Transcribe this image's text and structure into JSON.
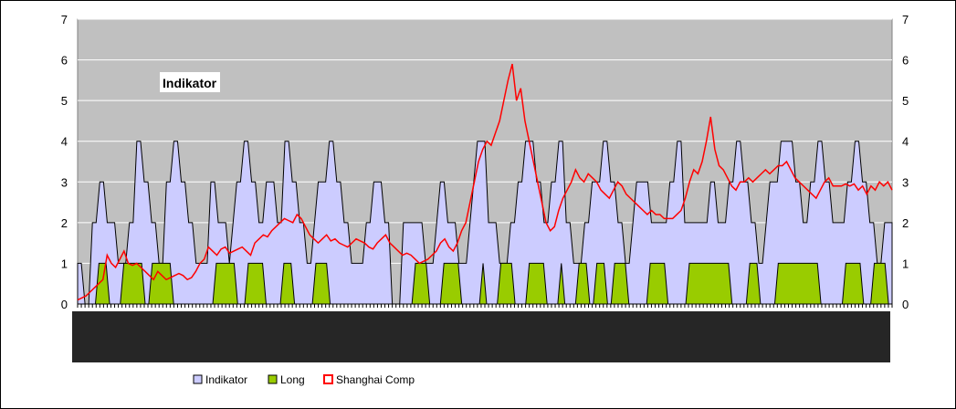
{
  "chart_data": {
    "type": "area",
    "title": "Indikator",
    "xlabel": "",
    "ylabel": "",
    "ylim": [
      0,
      7
    ],
    "y_ticks": [
      "0",
      "1",
      "2",
      "3",
      "4",
      "5",
      "6",
      "7"
    ],
    "grid": true,
    "legend_position": "bottom",
    "plot_background": "#c0c0c0",
    "series": [
      {
        "name": "Indikator",
        "kind": "area",
        "fill": "#ccccff",
        "stroke": "#000000",
        "values": [
          1,
          1,
          0,
          0,
          2,
          2,
          3,
          3,
          2,
          2,
          2,
          1,
          1,
          1,
          2,
          2,
          4,
          4,
          3,
          3,
          2,
          2,
          1,
          1,
          3,
          3,
          4,
          4,
          3,
          3,
          2,
          2,
          1,
          1,
          1,
          1,
          3,
          3,
          2,
          2,
          2,
          1,
          2,
          3,
          3,
          4,
          4,
          3,
          3,
          2,
          2,
          3,
          3,
          3,
          2,
          2,
          4,
          4,
          3,
          3,
          2,
          2,
          1,
          1,
          2,
          3,
          3,
          3,
          4,
          4,
          3,
          3,
          2,
          2,
          1,
          1,
          1,
          1,
          2,
          2,
          3,
          3,
          3,
          2,
          2,
          0,
          0,
          0,
          2,
          2,
          2,
          2,
          2,
          2,
          1,
          1,
          1,
          2,
          3,
          3,
          2,
          2,
          2,
          1,
          1,
          1,
          2,
          3,
          4,
          4,
          4,
          2,
          2,
          2,
          1,
          1,
          1,
          2,
          2,
          3,
          3,
          4,
          4,
          4,
          3,
          3,
          2,
          2,
          3,
          3,
          4,
          4,
          2,
          2,
          1,
          1,
          1,
          2,
          2,
          3,
          3,
          3,
          4,
          4,
          3,
          3,
          2,
          2,
          1,
          1,
          2,
          3,
          3,
          3,
          3,
          2,
          2,
          2,
          2,
          2,
          3,
          3,
          4,
          4,
          2,
          2,
          2,
          2,
          2,
          2,
          2,
          3,
          3,
          2,
          2,
          2,
          3,
          3,
          4,
          4,
          3,
          3,
          2,
          2,
          1,
          1,
          2,
          3,
          3,
          3,
          4,
          4,
          4,
          4,
          3,
          3,
          2,
          2,
          3,
          3,
          4,
          4,
          3,
          3,
          2,
          2,
          2,
          2,
          3,
          3,
          4,
          4,
          3,
          3,
          2,
          2,
          1,
          1,
          2,
          2,
          2
        ],
        "values_shared_length_note": ""
      },
      {
        "name": "Long",
        "kind": "area",
        "fill": "#99cc00",
        "stroke": "#000000",
        "values": [
          0,
          0,
          0,
          0,
          0,
          0,
          1,
          1,
          1,
          0,
          0,
          0,
          0,
          1,
          1,
          1,
          1,
          1,
          1,
          0,
          0,
          1,
          1,
          1,
          1,
          1,
          1,
          0,
          0,
          0,
          0,
          0,
          0,
          0,
          0,
          0,
          0,
          0,
          0,
          1,
          1,
          1,
          1,
          1,
          1,
          0,
          0,
          0,
          1,
          1,
          1,
          1,
          1,
          0,
          0,
          0,
          0,
          0,
          1,
          1,
          1,
          0,
          0,
          0,
          0,
          0,
          0,
          1,
          1,
          1,
          1,
          0,
          0,
          0,
          0,
          0,
          0,
          0,
          0,
          0,
          0,
          0,
          0,
          0,
          0,
          0,
          0,
          0,
          0,
          0,
          0,
          0,
          0,
          0,
          0,
          1,
          1,
          1,
          1,
          0,
          0,
          0,
          0,
          1,
          1,
          1,
          1,
          1,
          0,
          0,
          0,
          0,
          0,
          0,
          1,
          0,
          0,
          0,
          0,
          1,
          1,
          1,
          1,
          0,
          0,
          0,
          0,
          1,
          1,
          1,
          1,
          1,
          0,
          0,
          0,
          0,
          1,
          0,
          0,
          0,
          0,
          1,
          1,
          1,
          0,
          0,
          1,
          1,
          1,
          0,
          0,
          1,
          1,
          1,
          1,
          0,
          0,
          0,
          0,
          0,
          0,
          1,
          1,
          1,
          1,
          1,
          0,
          0,
          0,
          0,
          0,
          0,
          1,
          1,
          1,
          1,
          1,
          1,
          1,
          1,
          1,
          1,
          1,
          1,
          0,
          0,
          0,
          0,
          0,
          1,
          1,
          1,
          0,
          0,
          0,
          0,
          0,
          1,
          1,
          1,
          1,
          1,
          1,
          1,
          1,
          1,
          1,
          1,
          1,
          0,
          0,
          0,
          0,
          0,
          0,
          0,
          1,
          1,
          1,
          1,
          1,
          0,
          0,
          0,
          1,
          1,
          1,
          1,
          0,
          0
        ]
      },
      {
        "name": "Shanghai Comp",
        "kind": "line",
        "stroke": "#ff0000",
        "values": [
          0.1,
          0.15,
          0.2,
          0.3,
          0.4,
          0.5,
          0.6,
          1.2,
          1.0,
          0.9,
          1.1,
          1.3,
          1.0,
          0.95,
          1.0,
          0.9,
          0.8,
          0.7,
          0.6,
          0.8,
          0.7,
          0.6,
          0.65,
          0.7,
          0.75,
          0.7,
          0.6,
          0.65,
          0.8,
          1.0,
          1.1,
          1.4,
          1.3,
          1.2,
          1.35,
          1.4,
          1.25,
          1.3,
          1.35,
          1.4,
          1.3,
          1.2,
          1.5,
          1.6,
          1.7,
          1.65,
          1.8,
          1.9,
          2.0,
          2.1,
          2.05,
          2.0,
          2.2,
          2.1,
          1.9,
          1.7,
          1.6,
          1.5,
          1.6,
          1.7,
          1.55,
          1.6,
          1.5,
          1.45,
          1.4,
          1.5,
          1.6,
          1.55,
          1.5,
          1.4,
          1.35,
          1.5,
          1.6,
          1.7,
          1.5,
          1.4,
          1.3,
          1.2,
          1.25,
          1.2,
          1.1,
          1.0,
          1.05,
          1.1,
          1.2,
          1.3,
          1.5,
          1.6,
          1.4,
          1.3,
          1.5,
          1.8,
          2.0,
          2.5,
          3.0,
          3.5,
          3.8,
          4.0,
          3.9,
          4.2,
          4.5,
          5.0,
          5.5,
          5.9,
          5.0,
          5.3,
          4.5,
          4.0,
          3.5,
          3.0,
          2.5,
          2.0,
          1.8,
          1.9,
          2.3,
          2.6,
          2.8,
          3.0,
          3.3,
          3.1,
          3.0,
          3.2,
          3.1,
          3.0,
          2.8,
          2.7,
          2.6,
          2.8,
          3.0,
          2.9,
          2.7,
          2.6,
          2.5,
          2.4,
          2.3,
          2.2,
          2.3,
          2.2,
          2.2,
          2.1,
          2.1,
          2.1,
          2.2,
          2.3,
          2.6,
          3.0,
          3.3,
          3.2,
          3.5,
          4.0,
          4.6,
          3.8,
          3.4,
          3.3,
          3.1,
          2.9,
          2.8,
          3.0,
          3.0,
          3.1,
          3.0,
          3.1,
          3.2,
          3.3,
          3.2,
          3.3,
          3.4,
          3.4,
          3.5,
          3.3,
          3.1,
          3.0,
          2.9,
          2.8,
          2.7,
          2.6,
          2.8,
          3.0,
          3.1,
          2.9,
          2.9,
          2.9,
          2.95,
          2.9,
          2.95,
          2.8,
          2.9,
          2.7,
          2.9,
          2.8,
          3.0,
          2.9,
          3.0,
          2.8
        ]
      }
    ],
    "legend": [
      "Indikator",
      "Long",
      "Shanghai Comp"
    ]
  }
}
